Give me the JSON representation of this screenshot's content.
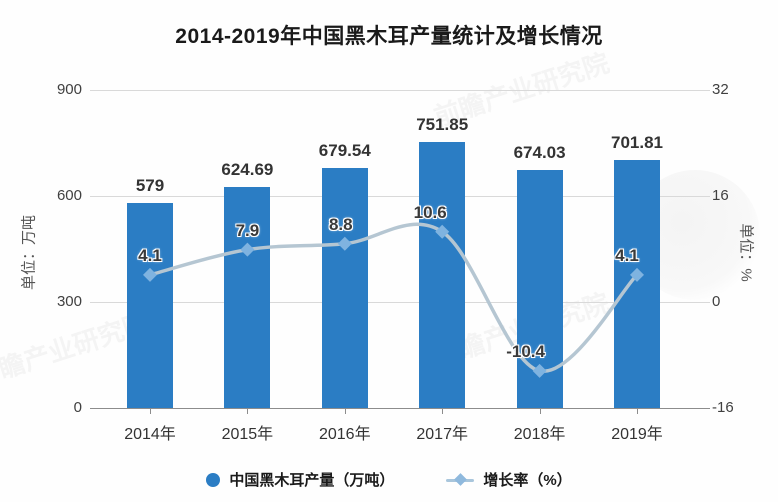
{
  "title": "2014-2019年中国黑木耳产量统计及增长情况",
  "chart_data": {
    "type": "bar+line",
    "title": "2014-2019年中国黑木耳产量统计及增长情况",
    "categories": [
      "2014年",
      "2015年",
      "2016年",
      "2017年",
      "2018年",
      "2019年"
    ],
    "series": [
      {
        "name": "中国黑木耳产量（万吨）",
        "type": "bar",
        "axis": "left",
        "values": [
          579,
          624.69,
          679.54,
          751.85,
          674.03,
          701.81
        ],
        "labels": [
          "579",
          "624.69",
          "679.54",
          "751.85",
          "674.03",
          "701.81"
        ],
        "color": "#2b7dc4"
      },
      {
        "name": "增长率（%）",
        "type": "line",
        "axis": "right",
        "values": [
          4.1,
          7.9,
          8.8,
          10.6,
          -10.4,
          4.1
        ],
        "labels": [
          "4.1",
          "7.9",
          "8.8",
          "10.6",
          "-10.4",
          "4.1"
        ],
        "color": "#b5c6d2",
        "marker_color": "#7fb3e0"
      }
    ],
    "left_axis": {
      "label": "单位：万吨",
      "ticks": [
        0,
        300,
        600,
        900
      ],
      "range": [
        0,
        900
      ]
    },
    "right_axis": {
      "label": "单位：%",
      "ticks": [
        -16,
        0,
        16,
        32
      ],
      "range": [
        -16,
        32
      ]
    },
    "grid": true,
    "legend_position": "bottom"
  },
  "legend": [
    {
      "label": "中国黑木耳产量（万吨）",
      "marker": "circle",
      "color": "#2b7dc4"
    },
    {
      "label": "增长率（%）",
      "marker": "diamond-line",
      "color": "#8fb9dd"
    }
  ],
  "watermark": {
    "text": "前瞻产业研究院"
  },
  "colors": {
    "bar": "#2b7dc4",
    "line": "#b5c6d2",
    "marker": "#7fb3e0",
    "grid": "#d9d9d9",
    "axis": "#8c8c8c"
  }
}
